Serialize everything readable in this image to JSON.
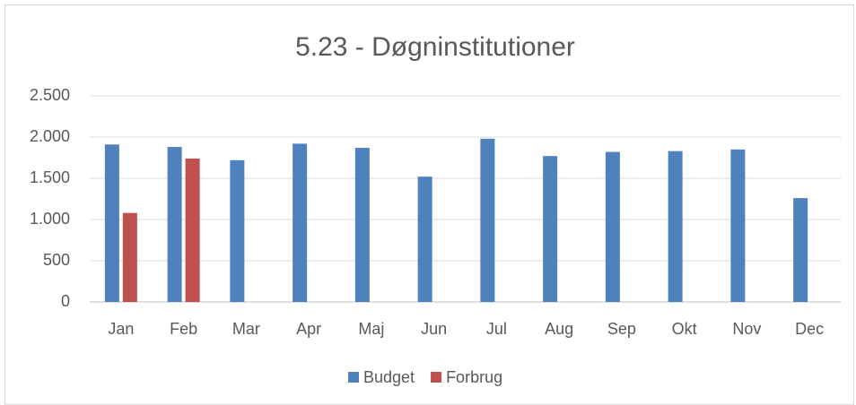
{
  "chart_data": {
    "type": "bar",
    "title": "5.23 - Døgninstitutioner",
    "categories": [
      "Jan",
      "Feb",
      "Mar",
      "Apr",
      "Maj",
      "Jun",
      "Jul",
      "Aug",
      "Sep",
      "Okt",
      "Nov",
      "Dec"
    ],
    "series": [
      {
        "name": "Budget",
        "color": "#4f81bd",
        "values": [
          1910,
          1880,
          1720,
          1920,
          1870,
          1520,
          1980,
          1770,
          1820,
          1830,
          1850,
          1260
        ]
      },
      {
        "name": "Forbrug",
        "color": "#c0504d",
        "values": [
          1080,
          1740,
          null,
          null,
          null,
          null,
          null,
          null,
          null,
          null,
          null,
          null
        ]
      }
    ],
    "ylim": [
      0,
      2500
    ],
    "yticks": [
      0,
      500,
      {
        "value": 1000,
        "label": "1.000"
      },
      {
        "value": 1500,
        "label": "1.500"
      },
      {
        "value": 2000,
        "label": "2.000"
      },
      {
        "value": 2500,
        "label": "2.500"
      }
    ],
    "grid": true,
    "legend": "bottom"
  }
}
